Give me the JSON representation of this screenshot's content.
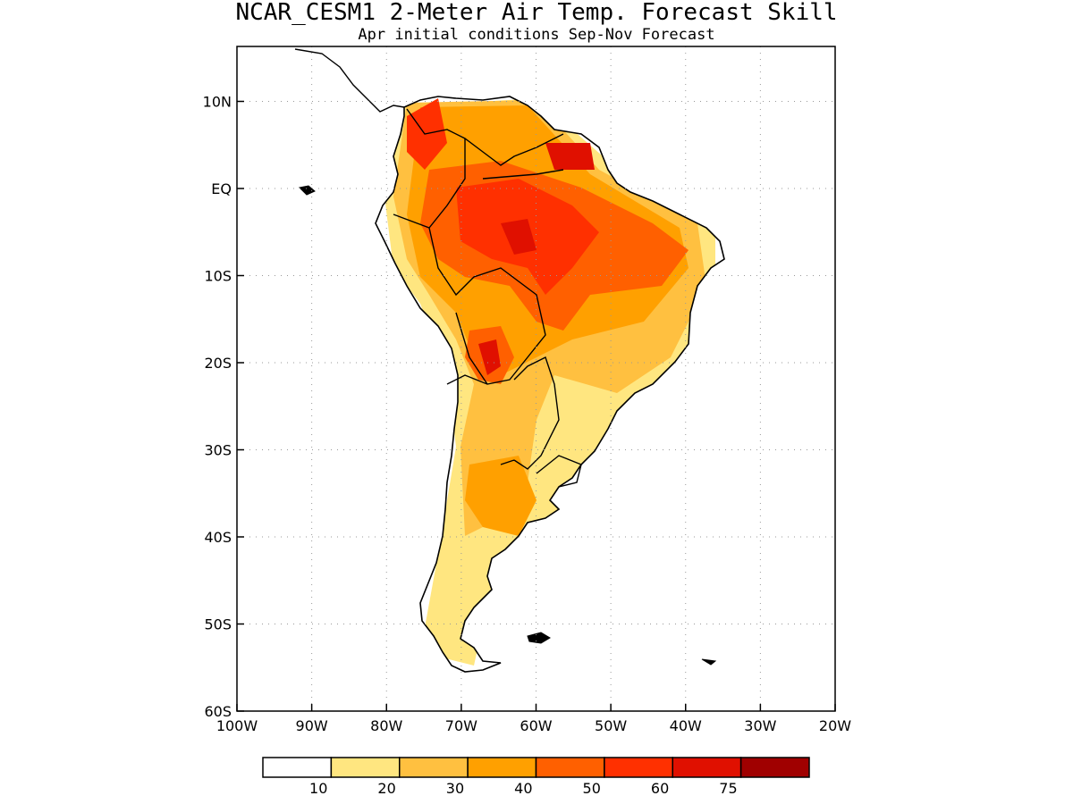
{
  "title": "NCAR_CESM1 2-Meter Air Temp. Forecast Skill",
  "subtitle": "Apr initial conditions  Sep-Nov Forecast",
  "map": {
    "lon_range": [
      -100,
      -20
    ],
    "lat_range": [
      -60,
      5
    ],
    "grid": true,
    "lat_ticks": [
      {
        "value": 10,
        "label": "10N"
      },
      {
        "value": 0,
        "label": "EQ"
      },
      {
        "value": -10,
        "label": "10S"
      },
      {
        "value": -20,
        "label": "20S"
      },
      {
        "value": -30,
        "label": "30S"
      },
      {
        "value": -40,
        "label": "40S"
      },
      {
        "value": -50,
        "label": "50S"
      },
      {
        "value": -60,
        "label": "60S"
      }
    ],
    "lon_ticks": [
      {
        "value": -100,
        "label": "100W"
      },
      {
        "value": -90,
        "label": "90W"
      },
      {
        "value": -80,
        "label": "80W"
      },
      {
        "value": -70,
        "label": "70W"
      },
      {
        "value": -60,
        "label": "60W"
      },
      {
        "value": -50,
        "label": "50W"
      },
      {
        "value": -40,
        "label": "40W"
      },
      {
        "value": -30,
        "label": "30W"
      },
      {
        "value": -20,
        "label": "20W"
      }
    ]
  },
  "colorbar": {
    "colors": [
      "#ffffff",
      "#ffe680",
      "#ffc040",
      "#ffa000",
      "#ff6000",
      "#ff3000",
      "#e01000",
      "#a00000"
    ],
    "labels": [
      "10",
      "20",
      "30",
      "40",
      "50",
      "60",
      "75"
    ]
  }
}
